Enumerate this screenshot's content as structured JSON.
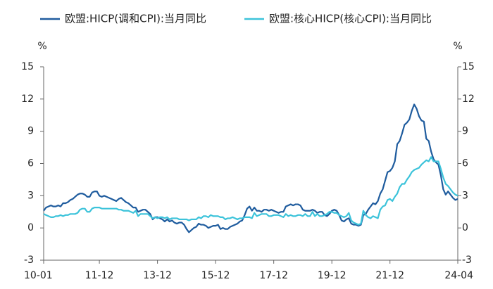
{
  "chart_data": {
    "type": "line",
    "y_label": "%",
    "y2_label": "%",
    "categories": [
      "10-01",
      null,
      null,
      null,
      null,
      null,
      null,
      null,
      null,
      null,
      null,
      null,
      null,
      null,
      null,
      null,
      null,
      null,
      null,
      null,
      null,
      null,
      null,
      "11-12",
      null,
      null,
      null,
      null,
      null,
      null,
      null,
      null,
      null,
      null,
      null,
      null,
      null,
      null,
      null,
      null,
      null,
      null,
      null,
      null,
      null,
      null,
      null,
      "13-12",
      null,
      null,
      null,
      null,
      null,
      null,
      null,
      null,
      null,
      null,
      null,
      null,
      null,
      null,
      null,
      null,
      null,
      null,
      null,
      null,
      null,
      null,
      null,
      "15-12",
      null,
      null,
      null,
      null,
      null,
      null,
      null,
      null,
      null,
      null,
      null,
      null,
      null,
      null,
      null,
      null,
      null,
      null,
      null,
      null,
      null,
      null,
      null,
      "17-12",
      null,
      null,
      null,
      null,
      null,
      null,
      null,
      null,
      null,
      null,
      null,
      null,
      null,
      null,
      null,
      null,
      null,
      null,
      null,
      null,
      null,
      null,
      null,
      "19-12",
      null,
      null,
      null,
      null,
      null,
      null,
      null,
      null,
      null,
      null,
      null,
      null,
      null,
      null,
      null,
      null,
      null,
      null,
      null,
      null,
      null,
      null,
      null,
      "21-12",
      null,
      null,
      null,
      null,
      null,
      null,
      null,
      null,
      null,
      null,
      null,
      null,
      null,
      null,
      null,
      null,
      null,
      null,
      null,
      null,
      null,
      null,
      null,
      null,
      null,
      null,
      null,
      "24-04"
    ],
    "series": [
      {
        "name": "欧盟:HICP(调和CPI):当月同比",
        "color": "#1f5c9e",
        "values": [
          1.6,
          1.9,
          2.0,
          2.1,
          2.0,
          2.0,
          2.1,
          2.0,
          2.3,
          2.3,
          2.4,
          2.6,
          2.7,
          2.9,
          3.1,
          3.2,
          3.2,
          3.1,
          2.9,
          2.9,
          3.3,
          3.4,
          3.4,
          3.0,
          2.9,
          3.0,
          2.9,
          2.8,
          2.7,
          2.6,
          2.5,
          2.7,
          2.8,
          2.6,
          2.4,
          2.3,
          2.1,
          1.9,
          1.9,
          1.5,
          1.6,
          1.7,
          1.7,
          1.5,
          1.3,
          0.8,
          1.0,
          1.0,
          0.9,
          0.8,
          0.6,
          0.8,
          0.6,
          0.7,
          0.5,
          0.4,
          0.5,
          0.5,
          0.3,
          -0.1,
          -0.4,
          -0.2,
          0.0,
          0.1,
          0.4,
          0.3,
          0.3,
          0.2,
          0.0,
          0.1,
          0.2,
          0.2,
          0.3,
          -0.1,
          0.0,
          -0.1,
          -0.1,
          0.1,
          0.2,
          0.3,
          0.4,
          0.6,
          0.7,
          1.2,
          1.8,
          2.0,
          1.6,
          1.9,
          1.6,
          1.6,
          1.5,
          1.7,
          1.7,
          1.6,
          1.7,
          1.6,
          1.5,
          1.4,
          1.5,
          1.5,
          2.0,
          2.1,
          2.2,
          2.1,
          2.2,
          2.2,
          2.1,
          1.7,
          1.6,
          1.6,
          1.6,
          1.7,
          1.6,
          1.4,
          1.5,
          1.5,
          1.2,
          1.1,
          1.3,
          1.6,
          1.7,
          1.6,
          1.2,
          0.7,
          0.6,
          0.8,
          0.9,
          0.4,
          0.3,
          0.3,
          0.2,
          0.3,
          1.2,
          1.3,
          1.7,
          2.0,
          2.3,
          2.2,
          2.5,
          3.2,
          3.6,
          4.4,
          5.2,
          5.3,
          5.6,
          6.2,
          7.8,
          8.1,
          8.8,
          9.6,
          9.8,
          10.1,
          10.9,
          11.5,
          11.1,
          10.4,
          10.0,
          9.9,
          8.3,
          8.1,
          7.1,
          6.4,
          6.1,
          5.9,
          4.9,
          3.6,
          3.1,
          3.4,
          3.1,
          2.8,
          2.6,
          2.7
        ]
      },
      {
        "name": "欧盟:核心HICP(核心CPI):当月同比",
        "color": "#3cc3da",
        "axis": "y2",
        "values": [
          1.3,
          1.2,
          1.1,
          1.0,
          1.0,
          1.1,
          1.1,
          1.2,
          1.1,
          1.2,
          1.2,
          1.3,
          1.3,
          1.3,
          1.4,
          1.7,
          1.8,
          1.8,
          1.5,
          1.5,
          1.8,
          1.9,
          1.9,
          1.9,
          1.8,
          1.8,
          1.8,
          1.8,
          1.8,
          1.8,
          1.8,
          1.7,
          1.7,
          1.6,
          1.6,
          1.6,
          1.5,
          1.4,
          1.6,
          1.1,
          1.3,
          1.3,
          1.3,
          1.3,
          1.1,
          0.9,
          1.0,
          0.9,
          1.0,
          1.0,
          0.9,
          1.0,
          0.8,
          0.9,
          0.9,
          0.9,
          0.8,
          0.8,
          0.8,
          0.8,
          0.7,
          0.8,
          0.8,
          0.8,
          1.0,
          0.9,
          1.1,
          1.1,
          1.0,
          1.2,
          1.1,
          1.1,
          1.1,
          1.0,
          1.0,
          0.8,
          0.9,
          0.9,
          1.0,
          0.9,
          0.8,
          0.9,
          0.9,
          1.0,
          1.0,
          1.0,
          0.9,
          1.4,
          1.1,
          1.2,
          1.3,
          1.3,
          1.3,
          1.1,
          1.1,
          1.2,
          1.2,
          1.2,
          1.1,
          1.0,
          1.3,
          1.1,
          1.2,
          1.1,
          1.1,
          1.2,
          1.2,
          1.1,
          1.3,
          1.1,
          1.1,
          1.5,
          1.1,
          1.3,
          1.1,
          1.1,
          1.2,
          1.3,
          1.5,
          1.5,
          1.4,
          1.4,
          1.2,
          1.1,
          1.0,
          1.1,
          1.4,
          0.7,
          0.5,
          0.4,
          0.3,
          0.4,
          1.6,
          1.2,
          1.0,
          0.9,
          1.1,
          1.0,
          0.9,
          1.7,
          2.0,
          2.1,
          2.6,
          2.7,
          2.5,
          2.9,
          3.2,
          3.8,
          4.1,
          4.1,
          4.5,
          4.8,
          5.2,
          5.4,
          5.5,
          5.6,
          5.9,
          6.1,
          6.3,
          6.2,
          6.6,
          6.2,
          6.2,
          6.2,
          5.5,
          4.7,
          4.1,
          3.9,
          3.6,
          3.3,
          3.1,
          3.0
        ]
      }
    ],
    "ylim": [
      -3,
      15
    ],
    "yticks": [
      -3,
      0,
      3,
      6,
      9,
      12,
      15
    ],
    "y2lim": [
      -3,
      15
    ],
    "y2ticks": [
      -3,
      0,
      3,
      6,
      9,
      12,
      15
    ],
    "grid": false
  }
}
